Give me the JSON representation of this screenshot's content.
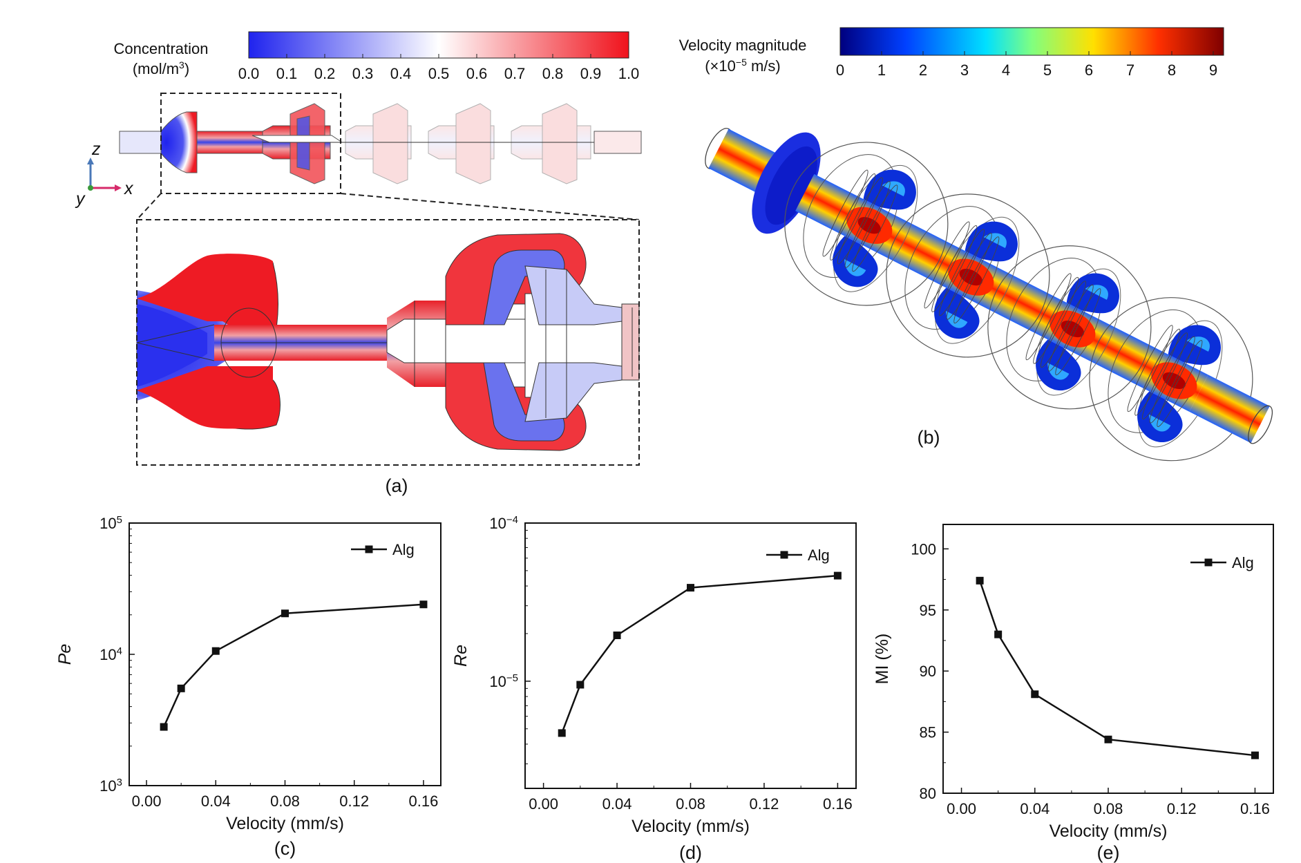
{
  "panels": {
    "a": {
      "caption": "(a)",
      "colorbar": {
        "title_line1": "Concentration",
        "title_line2_base": "(mol/m",
        "title_line2_sup": "3",
        "title_line2_end": ")",
        "ticks": [
          "0.0",
          "0.1",
          "0.2",
          "0.3",
          "0.4",
          "0.5",
          "0.6",
          "0.7",
          "0.8",
          "0.9",
          "1.0"
        ],
        "colors": [
          "#1f23ee",
          "#ffffff",
          "#f0121c"
        ]
      },
      "axes": {
        "z": "z",
        "x": "x",
        "y": "y"
      }
    },
    "b": {
      "caption": "(b)",
      "colorbar": {
        "title_line1": "Velocity magnitude",
        "title_line2_pre": "(×10",
        "title_line2_sup": "−5",
        "title_line2_end": " m/s)",
        "ticks": [
          "0",
          "1",
          "2",
          "3",
          "4",
          "5",
          "6",
          "7",
          "8",
          "9"
        ],
        "colors": [
          "#00007f",
          "#0050ff",
          "#00d8ff",
          "#7fff7f",
          "#ffd800",
          "#ff3000",
          "#7f0000"
        ]
      }
    }
  },
  "chart_data": [
    {
      "id": "c",
      "type": "line",
      "caption": "(c)",
      "xlabel": "Velocity (mm/s)",
      "ylabel": "Pe",
      "yscale": "log",
      "xlim": [
        -0.01,
        0.17
      ],
      "ylim": [
        1000,
        100000
      ],
      "xticks": [
        "0.00",
        "0.04",
        "0.08",
        "0.12",
        "0.16"
      ],
      "yticks": [
        {
          "base": "10",
          "exp": "3"
        },
        {
          "base": "10",
          "exp": "4"
        },
        {
          "base": "10",
          "exp": "5"
        }
      ],
      "series": [
        {
          "name": "Alg",
          "x": [
            0.01,
            0.02,
            0.04,
            0.08,
            0.16
          ],
          "y": [
            2800,
            5500,
            10600,
            20500,
            24000
          ]
        }
      ],
      "legend": "top-right"
    },
    {
      "id": "d",
      "type": "line",
      "caption": "(d)",
      "xlabel": "Velocity (mm/s)",
      "ylabel": "Re",
      "yscale": "log",
      "xlim": [
        -0.01,
        0.17
      ],
      "ylim": [
        2.1e-06,
        0.0001
      ],
      "xticks": [
        "0.00",
        "0.04",
        "0.08",
        "0.12",
        "0.16"
      ],
      "yticks": [
        {
          "base": "10",
          "exp": "−5"
        },
        {
          "base": "10",
          "exp": "−4"
        }
      ],
      "series": [
        {
          "name": "Alg",
          "x": [
            0.01,
            0.02,
            0.04,
            0.08,
            0.16
          ],
          "y": [
            4.7e-06,
            9.5e-06,
            1.95e-05,
            3.9e-05,
            4.65e-05
          ]
        }
      ],
      "legend": "top-right"
    },
    {
      "id": "e",
      "type": "line",
      "caption": "(e)",
      "xlabel": "Velocity (mm/s)",
      "ylabel": "MI (%)",
      "yscale": "linear",
      "xlim": [
        -0.01,
        0.17
      ],
      "ylim": [
        80,
        102
      ],
      "xticks": [
        "0.00",
        "0.04",
        "0.08",
        "0.12",
        "0.16"
      ],
      "yticks": [
        "80",
        "85",
        "90",
        "95",
        "100"
      ],
      "series": [
        {
          "name": "Alg",
          "x": [
            0.01,
            0.02,
            0.04,
            0.08,
            0.16
          ],
          "y": [
            97.4,
            93.0,
            88.1,
            84.4,
            83.1
          ]
        }
      ],
      "legend": "top-right"
    }
  ]
}
